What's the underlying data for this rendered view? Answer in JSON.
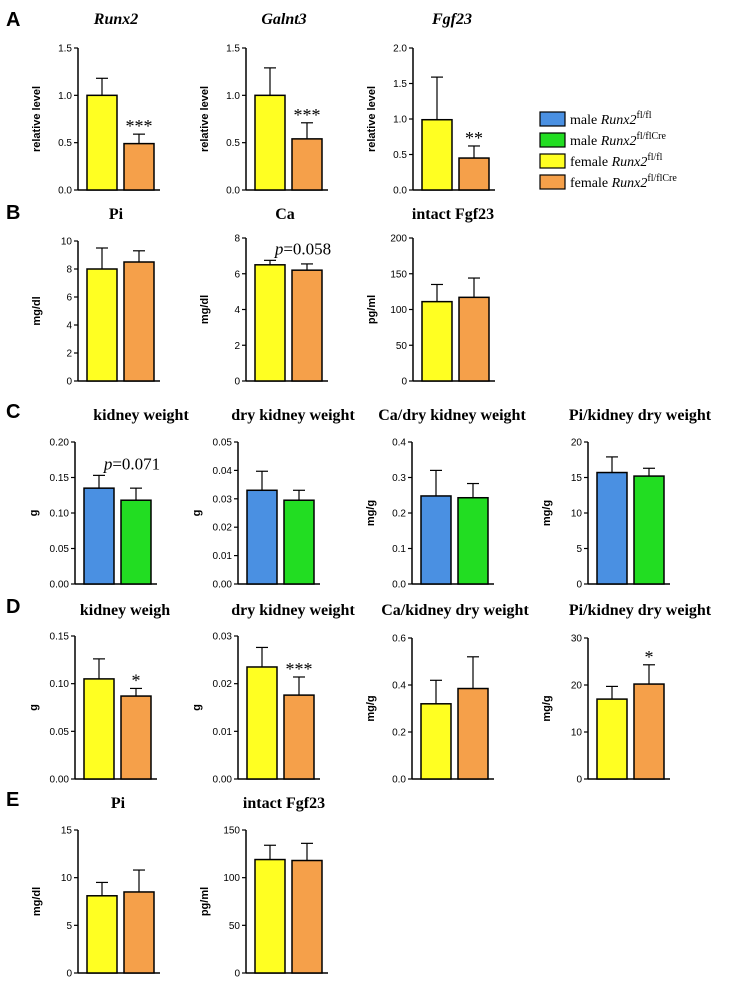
{
  "colors": {
    "male_fl": "#4a90e2",
    "male_flcre": "#22dd22",
    "female_fl": "#ffff22",
    "female_flcre": "#f5a04a"
  },
  "panel_labels": [
    "A",
    "B",
    "C",
    "D",
    "E"
  ],
  "legend": [
    {
      "label_prefix": "male ",
      "gene": "Runx2",
      "sup": "fl/fl",
      "color_key": "male_fl"
    },
    {
      "label_prefix": "male ",
      "gene": "Runx2",
      "sup": "fl/flCre",
      "color_key": "male_flcre"
    },
    {
      "label_prefix": "female ",
      "gene": "Runx2",
      "sup": "fl/fl",
      "color_key": "female_fl"
    },
    {
      "label_prefix": "female ",
      "gene": "Runx2",
      "sup": "fl/flCre",
      "color_key": "female_flcre"
    }
  ],
  "chart_data": [
    {
      "id": "A1",
      "panel": "A",
      "type": "bar",
      "title": "Runx2",
      "title_italic": true,
      "ylabel": "relative level",
      "ylim": [
        0,
        1.5
      ],
      "yticks": [
        "0.0",
        "0.5",
        "1.0",
        "1.5"
      ],
      "categories": [
        "female Runx2fl/fl",
        "female Runx2fl/flCre"
      ],
      "values": [
        1.0,
        0.49
      ],
      "errors": [
        0.18,
        0.1
      ],
      "colors": [
        "female_fl",
        "female_flcre"
      ],
      "annotation": "***"
    },
    {
      "id": "A2",
      "panel": "A",
      "type": "bar",
      "title": "Galnt3",
      "title_italic": true,
      "ylabel": "relative level",
      "ylim": [
        0,
        1.5
      ],
      "yticks": [
        "0.0",
        "0.5",
        "1.0",
        "1.5"
      ],
      "categories": [
        "female Runx2fl/fl",
        "female Runx2fl/flCre"
      ],
      "values": [
        1.0,
        0.54
      ],
      "errors": [
        0.29,
        0.17
      ],
      "colors": [
        "female_fl",
        "female_flcre"
      ],
      "annotation": "***"
    },
    {
      "id": "A3",
      "panel": "A",
      "type": "bar",
      "title": "Fgf23",
      "title_italic": true,
      "ylabel": "relative level",
      "ylim": [
        0,
        2.0
      ],
      "yticks": [
        "0.0",
        "0.5",
        "1.0",
        "1.5",
        "2.0"
      ],
      "categories": [
        "female Runx2fl/fl",
        "female Runx2fl/flCre"
      ],
      "values": [
        0.99,
        0.45
      ],
      "errors": [
        0.6,
        0.17
      ],
      "colors": [
        "female_fl",
        "female_flcre"
      ],
      "annotation": "**"
    },
    {
      "id": "B1",
      "panel": "B",
      "type": "bar",
      "title": "Pi",
      "title_italic": false,
      "ylabel": "mg/dl",
      "ylim": [
        0,
        10
      ],
      "yticks": [
        "0",
        "2",
        "4",
        "6",
        "8",
        "10"
      ],
      "categories": [
        "female Runx2fl/fl",
        "female Runx2fl/flCre"
      ],
      "values": [
        8.0,
        8.5
      ],
      "errors": [
        1.5,
        0.8
      ],
      "colors": [
        "female_fl",
        "female_flcre"
      ],
      "annotation": ""
    },
    {
      "id": "B2",
      "panel": "B",
      "type": "bar",
      "title": "Ca",
      "title_italic": false,
      "ylabel": "mg/dl",
      "ylim": [
        0,
        8
      ],
      "yticks": [
        "0",
        "2",
        "4",
        "6",
        "8"
      ],
      "categories": [
        "female Runx2fl/fl",
        "female Runx2fl/flCre"
      ],
      "values": [
        6.5,
        6.2
      ],
      "errors": [
        0.25,
        0.35
      ],
      "colors": [
        "female_fl",
        "female_flcre"
      ],
      "annotation": "",
      "p_label": {
        "p": "p",
        "rest": "=0.058"
      }
    },
    {
      "id": "B3",
      "panel": "B",
      "type": "bar",
      "title": "intact Fgf23",
      "title_italic": false,
      "ylabel": "pg/ml",
      "ylim": [
        0,
        200
      ],
      "yticks": [
        "0",
        "50",
        "100",
        "150",
        "200"
      ],
      "categories": [
        "female Runx2fl/fl",
        "female Runx2fl/flCre"
      ],
      "values": [
        111,
        117
      ],
      "errors": [
        24,
        27
      ],
      "colors": [
        "female_fl",
        "female_flcre"
      ],
      "annotation": ""
    },
    {
      "id": "C1",
      "panel": "C",
      "type": "bar",
      "title": "kidney weight",
      "title_italic": false,
      "ylabel": "g",
      "ylim": [
        0,
        0.2
      ],
      "yticks": [
        "0.00",
        "0.05",
        "0.10",
        "0.15",
        "0.20"
      ],
      "categories": [
        "male Runx2fl/fl",
        "male Runx2fl/flCre"
      ],
      "values": [
        0.135,
        0.118
      ],
      "errors": [
        0.018,
        0.017
      ],
      "colors": [
        "male_fl",
        "male_flcre"
      ],
      "annotation": "",
      "p_label": {
        "p": "p",
        "rest": "=0.071"
      }
    },
    {
      "id": "C2",
      "panel": "C",
      "type": "bar",
      "title": "dry kidney weight",
      "title_italic": false,
      "ylabel": "g",
      "ylim": [
        0,
        0.05
      ],
      "yticks": [
        "0.00",
        "0.01",
        "0.02",
        "0.03",
        "0.04",
        "0.05"
      ],
      "categories": [
        "male Runx2fl/fl",
        "male Runx2fl/flCre"
      ],
      "values": [
        0.033,
        0.0295
      ],
      "errors": [
        0.0067,
        0.0035
      ],
      "colors": [
        "male_fl",
        "male_flcre"
      ],
      "annotation": ""
    },
    {
      "id": "C3",
      "panel": "C",
      "type": "bar",
      "title": "Ca/dry kidney weight",
      "title_italic": false,
      "ylabel": "mg/g",
      "ylim": [
        0,
        0.4
      ],
      "yticks": [
        "0.0",
        "0.1",
        "0.2",
        "0.3",
        "0.4"
      ],
      "categories": [
        "male Runx2fl/fl",
        "male Runx2fl/flCre"
      ],
      "values": [
        0.248,
        0.243
      ],
      "errors": [
        0.072,
        0.04
      ],
      "colors": [
        "male_fl",
        "male_flcre"
      ],
      "annotation": ""
    },
    {
      "id": "C4",
      "panel": "C",
      "type": "bar",
      "title": "Pi/kidney dry weight",
      "title_italic": false,
      "ylabel": "mg/g",
      "ylim": [
        0,
        20
      ],
      "yticks": [
        "0",
        "5",
        "10",
        "15",
        "20"
      ],
      "categories": [
        "male Runx2fl/fl",
        "male Runx2fl/flCre"
      ],
      "values": [
        15.7,
        15.2
      ],
      "errors": [
        2.2,
        1.1
      ],
      "colors": [
        "male_fl",
        "male_flcre"
      ],
      "annotation": ""
    },
    {
      "id": "D1",
      "panel": "D",
      "type": "bar",
      "title": "kidney weigh",
      "title_italic": false,
      "ylabel": "g",
      "ylim": [
        0,
        0.15
      ],
      "yticks": [
        "0.00",
        "0.05",
        "0.10",
        "0.15"
      ],
      "categories": [
        "female Runx2fl/fl",
        "female Runx2fl/flCre"
      ],
      "values": [
        0.105,
        0.087
      ],
      "errors": [
        0.021,
        0.008
      ],
      "colors": [
        "female_fl",
        "female_flcre"
      ],
      "annotation": "*"
    },
    {
      "id": "D2",
      "panel": "D",
      "type": "bar",
      "title": "dry kidney weight",
      "title_italic": false,
      "ylabel": "g",
      "ylim": [
        0,
        0.03
      ],
      "yticks": [
        "0.00",
        "0.01",
        "0.02",
        "0.03"
      ],
      "categories": [
        "female Runx2fl/fl",
        "female Runx2fl/flCre"
      ],
      "values": [
        0.0235,
        0.0176
      ],
      "errors": [
        0.0041,
        0.0038
      ],
      "colors": [
        "female_fl",
        "female_flcre"
      ],
      "annotation": "***"
    },
    {
      "id": "D3",
      "panel": "D",
      "type": "bar",
      "title": "Ca/kidney dry weight",
      "title_italic": false,
      "ylabel": "mg/g",
      "ylim": [
        0,
        0.6
      ],
      "yticks": [
        "0.0",
        "0.2",
        "0.4",
        "0.6"
      ],
      "categories": [
        "female Runx2fl/fl",
        "female Runx2fl/flCre"
      ],
      "values": [
        0.32,
        0.385
      ],
      "errors": [
        0.1,
        0.135
      ],
      "colors": [
        "female_fl",
        "female_flcre"
      ],
      "annotation": ""
    },
    {
      "id": "D4",
      "panel": "D",
      "type": "bar",
      "title": "Pi/kidney dry weight",
      "title_italic": false,
      "ylabel": "mg/g",
      "ylim": [
        0,
        30
      ],
      "yticks": [
        "0",
        "10",
        "20",
        "30"
      ],
      "categories": [
        "female Runx2fl/fl",
        "female Runx2fl/flCre"
      ],
      "values": [
        17.0,
        20.2
      ],
      "errors": [
        2.7,
        4.1
      ],
      "colors": [
        "female_fl",
        "female_flcre"
      ],
      "annotation": "*"
    },
    {
      "id": "E1",
      "panel": "E",
      "type": "bar",
      "title": "Pi",
      "title_italic": false,
      "ylabel": "mg/dl",
      "ylim": [
        0,
        15
      ],
      "yticks": [
        "0",
        "5",
        "10",
        "15"
      ],
      "categories": [
        "female Runx2fl/fl",
        "female Runx2fl/flCre"
      ],
      "values": [
        8.1,
        8.5
      ],
      "errors": [
        1.4,
        2.3
      ],
      "colors": [
        "female_fl",
        "female_flcre"
      ],
      "annotation": ""
    },
    {
      "id": "E2",
      "panel": "E",
      "type": "bar",
      "title": "intact Fgf23",
      "title_italic": false,
      "ylabel": "pg/ml",
      "ylim": [
        0,
        150
      ],
      "yticks": [
        "0",
        "50",
        "100",
        "150"
      ],
      "categories": [
        "female Runx2fl/fl",
        "female Runx2fl/flCre"
      ],
      "values": [
        119,
        118
      ],
      "errors": [
        15,
        18
      ],
      "colors": [
        "female_fl",
        "female_flcre"
      ],
      "annotation": ""
    }
  ]
}
